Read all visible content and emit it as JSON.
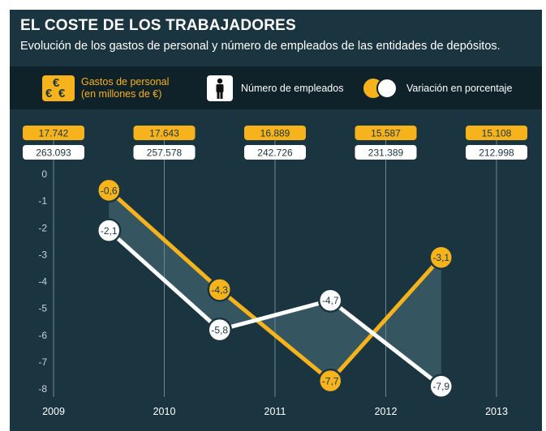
{
  "header": {
    "title": "EL COSTE DE LOS TRABAJADORES",
    "subtitle": "Evolución de los gastos de personal y número de empleados de las entidades de depósitos."
  },
  "legend": {
    "euro_symbol": "€",
    "gastos_line1": "Gastos de personal",
    "gastos_line2": "(en millones de €)",
    "empleados": "Número de empleados",
    "variacion": "Variación en porcentaje"
  },
  "colors": {
    "gastos": "#f6b31c",
    "empleados": "#ffffff",
    "background": "#1b3540",
    "band": "#0f2129"
  },
  "chart_data": {
    "type": "line",
    "years": [
      "2009",
      "2010",
      "2011",
      "2012",
      "2013"
    ],
    "gastos_personal": [
      "17.742",
      "17.643",
      "16.889",
      "15.587",
      "15.108"
    ],
    "numero_empleados": [
      "263.093",
      "257.578",
      "242.726",
      "231.389",
      "212.998"
    ],
    "y_ticks": [
      0,
      -1,
      -2,
      -3,
      -4,
      -5,
      -6,
      -7,
      -8
    ],
    "ylim": [
      -8,
      0
    ],
    "series": [
      {
        "key": "gastos",
        "x": [
          2009.5,
          2010.5,
          2011.5,
          2012.5
        ],
        "values": [
          -0.6,
          -4.3,
          -7.7,
          -3.1
        ],
        "labels": [
          "-0,6",
          "-4,3",
          "-7,7",
          "-3,1"
        ]
      },
      {
        "key": "empleados",
        "x": [
          2009.5,
          2010.5,
          2011.5,
          2012.5
        ],
        "values": [
          -2.1,
          -5.8,
          -4.7,
          -7.9
        ],
        "labels": [
          "-2,1",
          "-5,8",
          "-4,7",
          "-7,9"
        ]
      }
    ]
  }
}
